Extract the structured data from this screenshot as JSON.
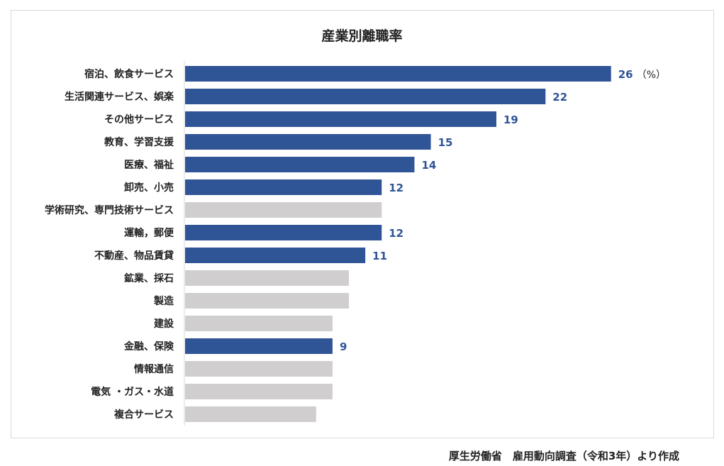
{
  "chart_data": {
    "type": "bar",
    "orientation": "horizontal",
    "title": "産業別離職率",
    "unit_label": "（%）",
    "categories": [
      "宿泊、飲食サービス",
      "生活関連サービス、娯楽",
      "その他サービス",
      "教育、学習支援",
      "医療、福祉",
      "卸売、小売",
      "学術研究、専門技術サービス",
      "運輸，郵便",
      "不動産、物品賃貸",
      "鉱業、採石",
      "製造",
      "建設",
      "金融、保険",
      "情報通信",
      "電気 ・ガス・水道",
      "複合サービス"
    ],
    "values": [
      26,
      22,
      19,
      15,
      14,
      12,
      12,
      12,
      11,
      10,
      10,
      9,
      9,
      9,
      9,
      8
    ],
    "highlighted": [
      true,
      true,
      true,
      true,
      true,
      true,
      false,
      true,
      true,
      false,
      false,
      false,
      true,
      false,
      false,
      false
    ],
    "data_labels": [
      "26",
      "22",
      "19",
      "15",
      "14",
      "12",
      "",
      "12",
      "11",
      "",
      "",
      "",
      "9",
      "",
      "",
      ""
    ],
    "colors": {
      "highlight": "#2f5597",
      "other": "#d0cece",
      "label": "#2f5597"
    },
    "xlim": [
      0,
      27.7
    ]
  },
  "source_text": "厚生労働省　雇用動向調査（令和3年）より作成"
}
